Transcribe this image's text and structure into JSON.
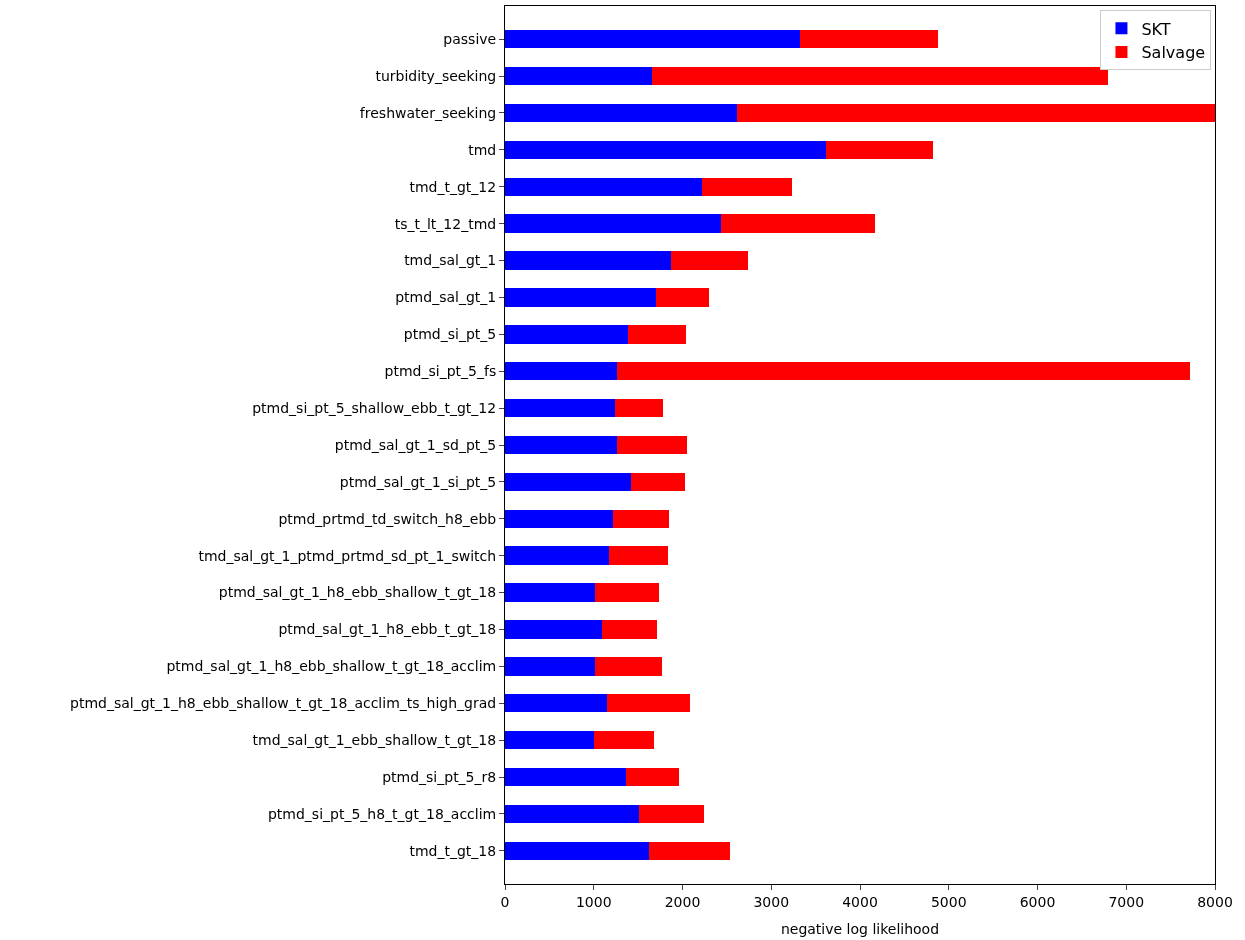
{
  "chart_data": {
    "type": "bar",
    "orientation": "horizontal",
    "stacked": true,
    "xlabel": "negative log likelihood",
    "categories": [
      "passive",
      "turbidity_seeking",
      "freshwater_seeking",
      "tmd",
      "tmd_t_gt_12",
      "ts_t_lt_12_tmd",
      "tmd_sal_gt_1",
      "ptmd_sal_gt_1",
      "ptmd_si_pt_5",
      "ptmd_si_pt_5_fs",
      "ptmd_si_pt_5_shallow_ebb_t_gt_12",
      "ptmd_sal_gt_1_sd_pt_5",
      "ptmd_sal_gt_1_si_pt_5",
      "ptmd_prtmd_td_switch_h8_ebb",
      "tmd_sal_gt_1_ptmd_prtmd_sd_pt_1_switch",
      "ptmd_sal_gt_1_h8_ebb_shallow_t_gt_18",
      "ptmd_sal_gt_1_h8_ebb_t_gt_18",
      "ptmd_sal_gt_1_h8_ebb_shallow_t_gt_18_acclim",
      "ptmd_sal_gt_1_h8_ebb_shallow_t_gt_18_acclim_ts_high_grad",
      "tmd_sal_gt_1_ebb_shallow_t_gt_18",
      "ptmd_si_pt_5_r8",
      "ptmd_si_pt_5_h8_t_gt_18_acclim",
      "tmd_t_gt_18"
    ],
    "series": [
      {
        "name": "SKT",
        "color": "#0000ff",
        "values": [
          3320,
          1660,
          2610,
          3620,
          2220,
          2430,
          1870,
          1700,
          1390,
          1260,
          1240,
          1260,
          1420,
          1220,
          1170,
          1010,
          1090,
          1010,
          1150,
          1000,
          1360,
          1510,
          1620
        ]
      },
      {
        "name": "Salvage",
        "color": "#ff0000",
        "values": [
          1560,
          5130,
          5390,
          1200,
          1010,
          1740,
          870,
          600,
          650,
          6460,
          540,
          790,
          610,
          630,
          670,
          730,
          620,
          760,
          940,
          680,
          600,
          730,
          920
        ]
      }
    ],
    "xlim": [
      0,
      8000
    ],
    "xticks": [
      0,
      1000,
      2000,
      3000,
      4000,
      5000,
      6000,
      7000,
      8000
    ],
    "legend": "top right"
  }
}
